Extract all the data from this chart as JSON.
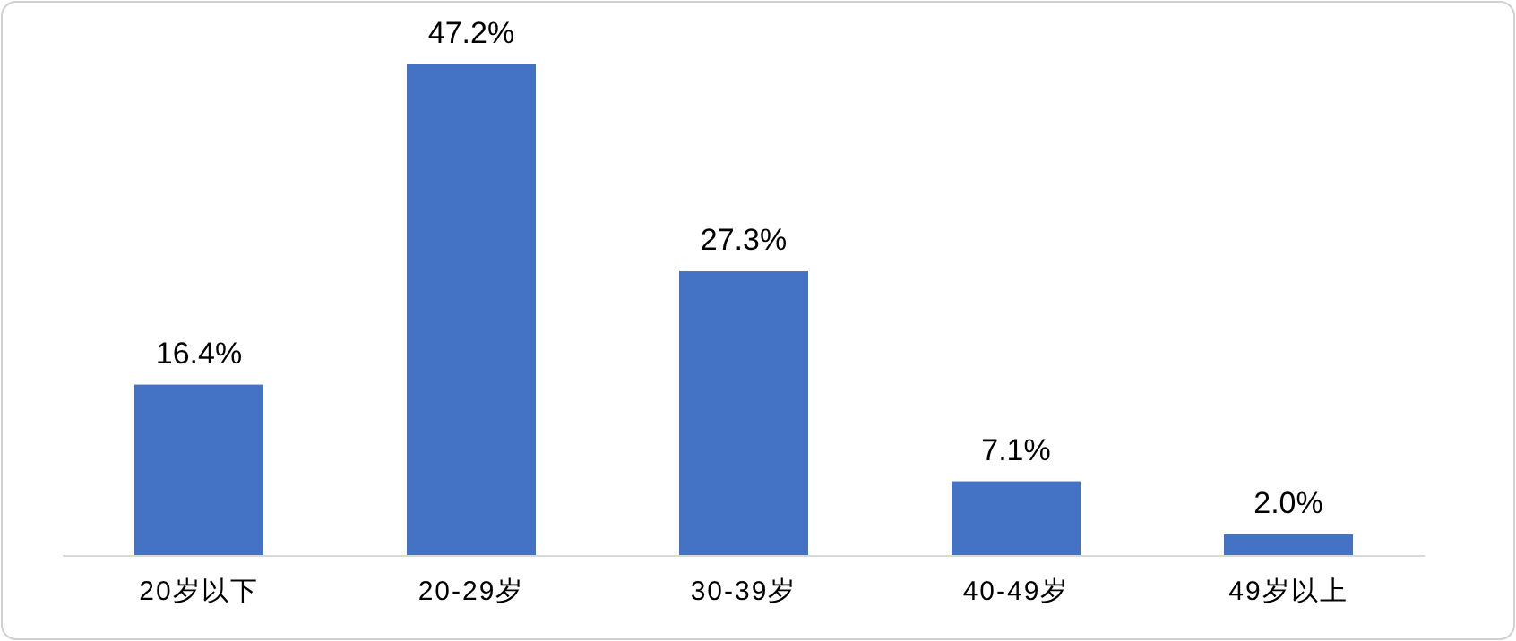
{
  "chart_data": {
    "type": "bar",
    "categories": [
      "20岁以下",
      "20-29岁",
      "30-39岁",
      "40-49岁",
      "49岁以上"
    ],
    "values": [
      16.4,
      47.2,
      27.3,
      7.1,
      2.0
    ],
    "color": "#4472c4",
    "value_labels": [
      "16.4%",
      "47.2%",
      "27.3%",
      "7.1%",
      "2.0%"
    ]
  }
}
